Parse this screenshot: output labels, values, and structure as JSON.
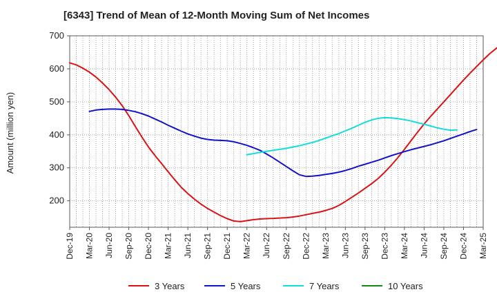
{
  "chart_data": {
    "type": "line",
    "title": "[6343]  Trend of Mean of 12-Month Moving Sum of Net Incomes",
    "xlabel": "",
    "ylabel": "Amount (million yen)",
    "x_ticks": [
      "Dec-19",
      "Mar-20",
      "Jun-20",
      "Sep-20",
      "Dec-20",
      "Mar-21",
      "Jun-21",
      "Sep-21",
      "Dec-21",
      "Mar-22",
      "Jun-22",
      "Sep-22",
      "Dec-22",
      "Mar-23",
      "Jun-23",
      "Sep-23",
      "Dec-23",
      "Mar-24",
      "Jun-24",
      "Sep-24",
      "Dec-24",
      "Mar-25"
    ],
    "ylim": [
      120,
      700
    ],
    "y_ticks": [
      200,
      300,
      400,
      500,
      600,
      700
    ],
    "grid": true,
    "legend_position": "bottom",
    "series": [
      {
        "name": "3 Years",
        "color": "#dd1111",
        "start": "Dec-19",
        "values": [
          618,
          612,
          602,
          590,
          575,
          557,
          537,
          514,
          488,
          458,
          425,
          393,
          363,
          337,
          313,
          288,
          264,
          241,
          222,
          205,
          190,
          177,
          166,
          155,
          146,
          139,
          137,
          140,
          143,
          145,
          146,
          147,
          148,
          149,
          151,
          154,
          158,
          162,
          166,
          171,
          177,
          186,
          198,
          211,
          224,
          238,
          252,
          268,
          287,
          308,
          331,
          356,
          382,
          408,
          433,
          456,
          478,
          500,
          522,
          544,
          566,
          587,
          607,
          627,
          646,
          662,
          676,
          685,
          690
        ]
      },
      {
        "name": "5 Years",
        "color": "#1111cc",
        "start": "Mar-20",
        "values": [
          471,
          475,
          477,
          478,
          478,
          477,
          474,
          470,
          464,
          457,
          448,
          439,
          429,
          420,
          411,
          403,
          396,
          390,
          386,
          384,
          383,
          382,
          379,
          374,
          368,
          361,
          353,
          342,
          330,
          317,
          304,
          291,
          279,
          274,
          275,
          277,
          280,
          283,
          287,
          292,
          298,
          305,
          311,
          317,
          323,
          330,
          337,
          343,
          349,
          355,
          360,
          365,
          370,
          376,
          382,
          389,
          396,
          403,
          410,
          416
        ]
      },
      {
        "name": "7 Years",
        "color": "#11dddd",
        "start": "Mar-22",
        "values": [
          340,
          343,
          347,
          350,
          353,
          356,
          359,
          363,
          367,
          372,
          377,
          383,
          390,
          397,
          404,
          412,
          420,
          429,
          438,
          445,
          450,
          452,
          451,
          449,
          446,
          442,
          437,
          432,
          427,
          421,
          417,
          414,
          415
        ]
      },
      {
        "name": "10 Years",
        "color": "#118811",
        "start": "Dec-24",
        "values": []
      }
    ]
  }
}
